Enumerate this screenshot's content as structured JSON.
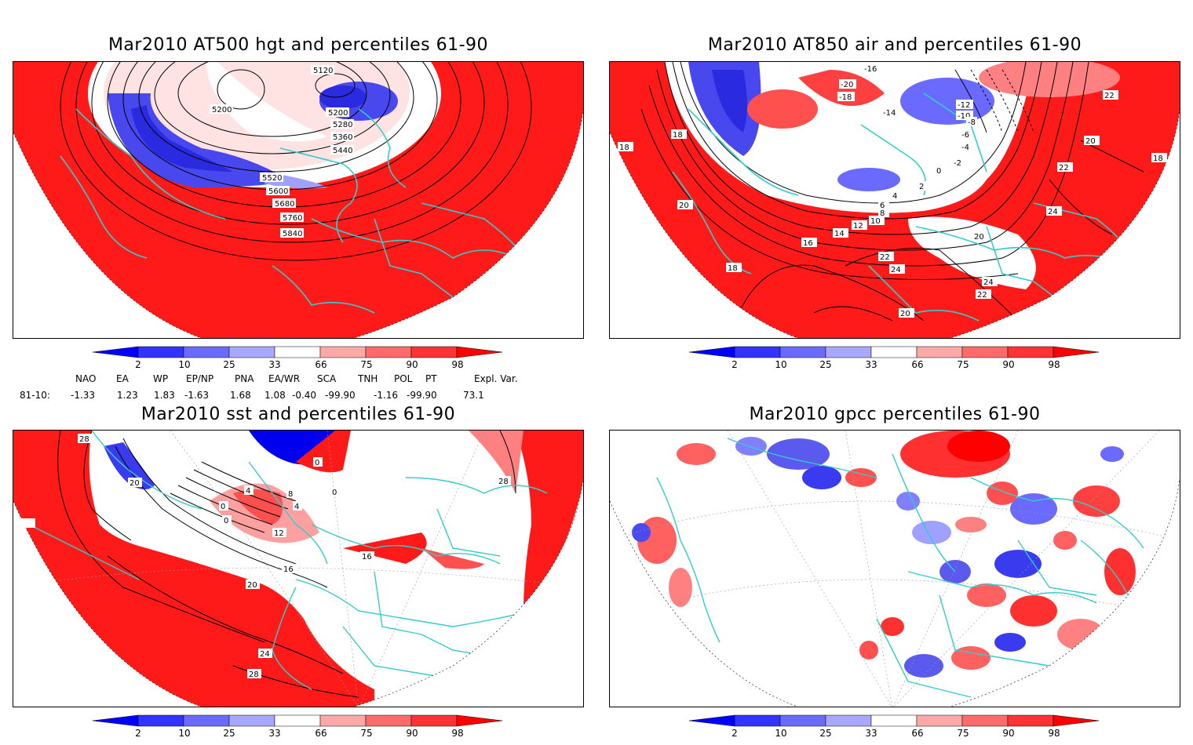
{
  "panels": [
    {
      "title": "Mar2010 AT500 hgt and percentiles 61-90",
      "contour_labels": [
        "5120",
        "5200",
        "5200",
        "5280",
        "5360",
        "5440",
        "5520",
        "5600",
        "5680",
        "5760",
        "5840"
      ]
    },
    {
      "title": "Mar2010 AT850 air and percentiles 61-90",
      "contour_labels": [
        "-16",
        "-20",
        "-18",
        "-14",
        "-12",
        "-10",
        "-8",
        "-6",
        "-4",
        "-2",
        "0",
        "2",
        "4",
        "6",
        "8",
        "10",
        "12",
        "14",
        "16",
        "18",
        "18",
        "18",
        "18",
        "20",
        "20",
        "20",
        "20",
        "22",
        "22",
        "22",
        "22",
        "24",
        "24",
        "24"
      ]
    },
    {
      "title": "Mar2010 sst and percentiles 61-90",
      "contour_labels": [
        "28",
        "20",
        "0",
        "0",
        "4",
        "8",
        "4",
        "12",
        "16",
        "20",
        "24",
        "28",
        "16",
        "28",
        "0",
        "0"
      ]
    },
    {
      "title": "Mar2010 gpcc percentiles 61-90",
      "contour_labels": []
    }
  ],
  "colorbar": {
    "ticks": [
      "2",
      "10",
      "25",
      "33",
      "66",
      "75",
      "90",
      "98"
    ],
    "colors": [
      "#0000ff",
      "#3333ff",
      "#6a6aff",
      "#a8a8ff",
      "#ffffff",
      "#ffa8a8",
      "#ff6a6a",
      "#ff3333",
      "#ff0000"
    ]
  },
  "indices": {
    "headers": [
      "NAO",
      "EA",
      "WP",
      "EP/NP",
      "PNA",
      "EA/WR",
      "SCA",
      "TNH",
      "POL",
      "PT",
      "Expl. Var."
    ],
    "row_label": "81-10:",
    "values": [
      "-1.33",
      "1.23",
      "1.83",
      "-1.63",
      "1.68",
      "1.08",
      "-0.40",
      "-99.90",
      "-1.16",
      "-99.90",
      "73.1"
    ]
  },
  "colors": {
    "land_outline": "#33cccc",
    "anomaly_warm": "#ff2020",
    "anomaly_cold": "#3a3aee",
    "contour": "#000000"
  }
}
